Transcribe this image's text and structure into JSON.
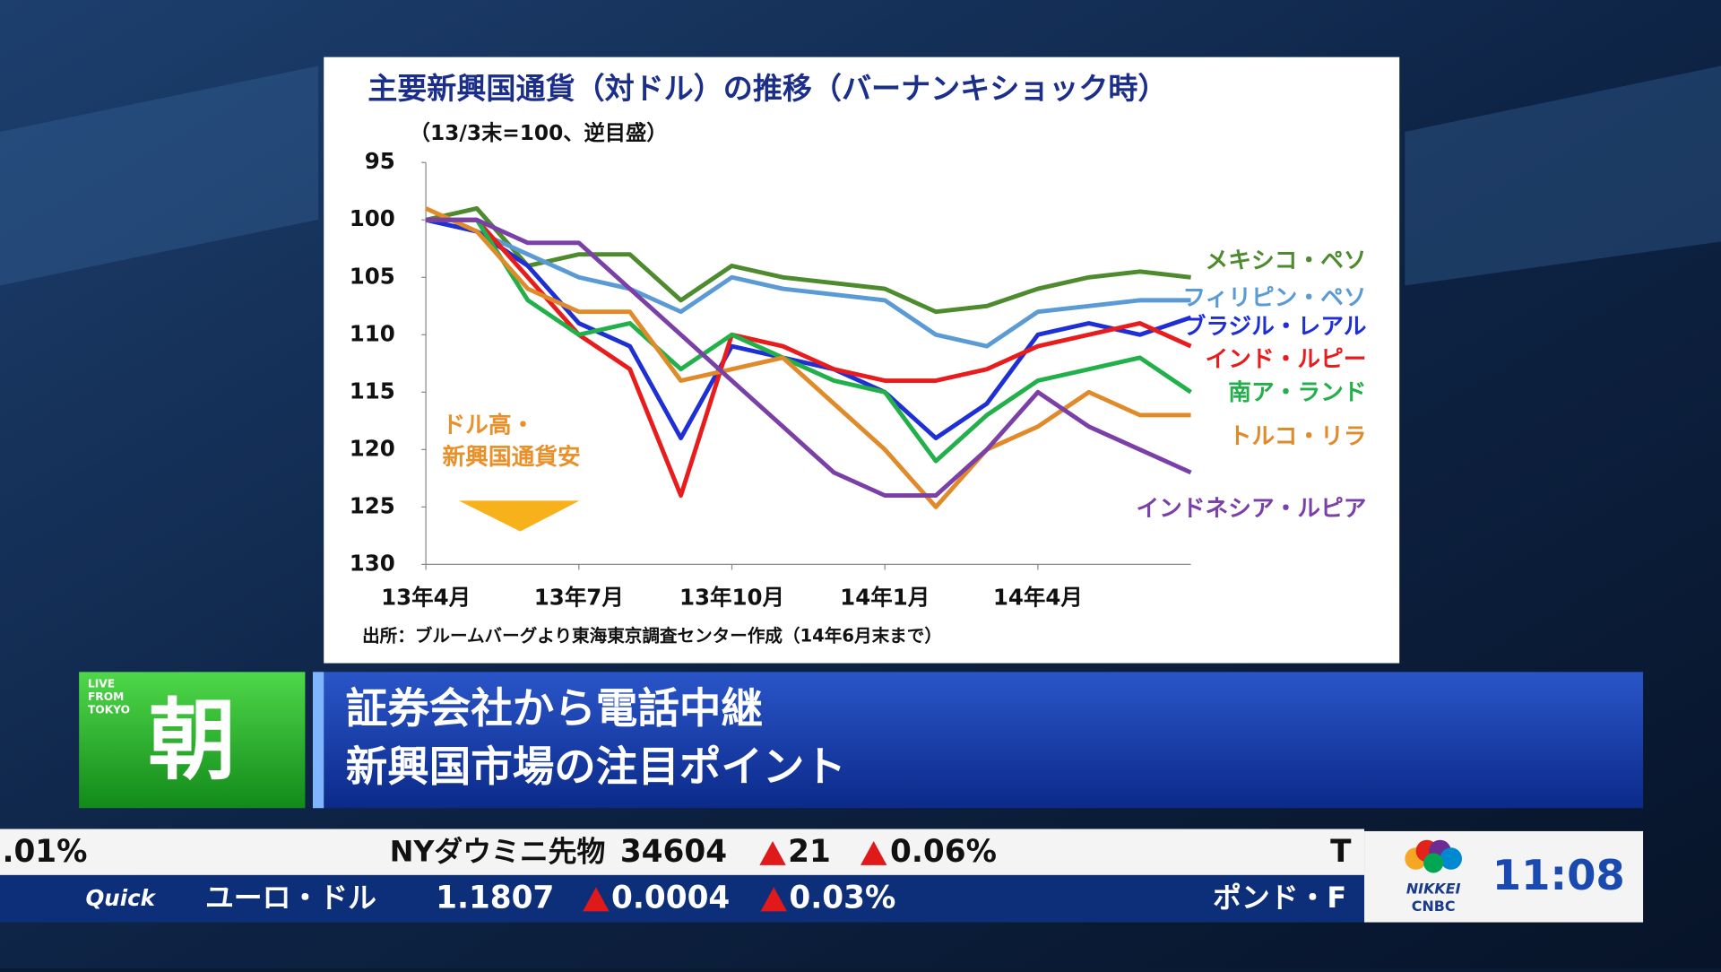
{
  "chart_data": {
    "type": "line",
    "title": "主要新興国通貨（対ドル）の推移（バーナンキショック時）",
    "subtitle": "（13/3末=100、逆目盛）",
    "annotation": [
      "ドル高・",
      "新興国通貨安"
    ],
    "source": "出所：ブルームバーグより東海東京調査センター作成（14年6月末まで）",
    "categories": [
      "13年4月",
      null,
      null,
      "13年7月",
      null,
      null,
      "13年10月",
      null,
      null,
      "14年1月",
      null,
      null,
      "14年4月",
      null,
      null,
      null
    ],
    "ylim": [
      130,
      95
    ],
    "yticks": [
      95,
      100,
      105,
      110,
      115,
      120,
      125,
      130
    ],
    "series": [
      {
        "name": "メキシコ・ペソ",
        "color": "#4e8a2e",
        "values": [
          100,
          99,
          104,
          103,
          103,
          107,
          104,
          105,
          105.5,
          106,
          108,
          107.5,
          106,
          105,
          104.5,
          105
        ]
      },
      {
        "name": "フィリピン・ペソ",
        "color": "#5b9bd5",
        "values": [
          100,
          101,
          103,
          105,
          106,
          108,
          105,
          106,
          106.5,
          107,
          110,
          111,
          108,
          107.5,
          107,
          107
        ]
      },
      {
        "name": "ブラジル・レアル",
        "color": "#1f2fd6",
        "values": [
          100,
          101,
          104,
          109,
          111,
          119,
          111,
          112,
          113,
          115,
          119,
          116,
          110,
          109,
          110,
          108.5
        ]
      },
      {
        "name": "インド・ルピー",
        "color": "#e81c1c",
        "values": [
          100,
          100,
          105,
          110,
          113,
          124,
          110,
          111,
          113,
          114,
          114,
          113,
          111,
          110,
          109,
          111
        ]
      },
      {
        "name": "南ア・ランド",
        "color": "#22b04a",
        "values": [
          100,
          100,
          107,
          110,
          109,
          113,
          110,
          112,
          114,
          115,
          121,
          117,
          114,
          113,
          112,
          115
        ]
      },
      {
        "name": "トルコ・リラ",
        "color": "#e08a2a",
        "values": [
          99,
          101,
          106,
          108,
          108,
          114,
          113,
          112,
          116,
          120,
          125,
          120,
          118,
          115,
          117,
          117
        ]
      },
      {
        "name": "インドネシア・ルピア",
        "color": "#7b3fa8",
        "values": [
          100,
          100,
          102,
          102,
          106,
          110,
          114,
          118,
          122,
          124,
          124,
          120,
          115,
          118,
          120,
          122
        ]
      }
    ]
  },
  "banner": {
    "live": [
      "LIVE",
      "FROM",
      "TOKYO"
    ],
    "program": "朝",
    "headline": [
      "証券会社から電話中継",
      "新興国市場の注目ポイント"
    ]
  },
  "ticker": {
    "row1": {
      "left": ".01%",
      "name": "NYダウミニ先物",
      "price": "34604",
      "change": "21",
      "change_pct": "0.06%",
      "next": "T"
    },
    "row2": {
      "source": "Quick",
      "name": "ユーロ・ドル",
      "price": "1.1807",
      "change": "0.0004",
      "change_pct": "0.03%",
      "next": "ポンド・F"
    }
  },
  "clock": "11:08",
  "logo": [
    "NIKKEI",
    "CNBC"
  ]
}
